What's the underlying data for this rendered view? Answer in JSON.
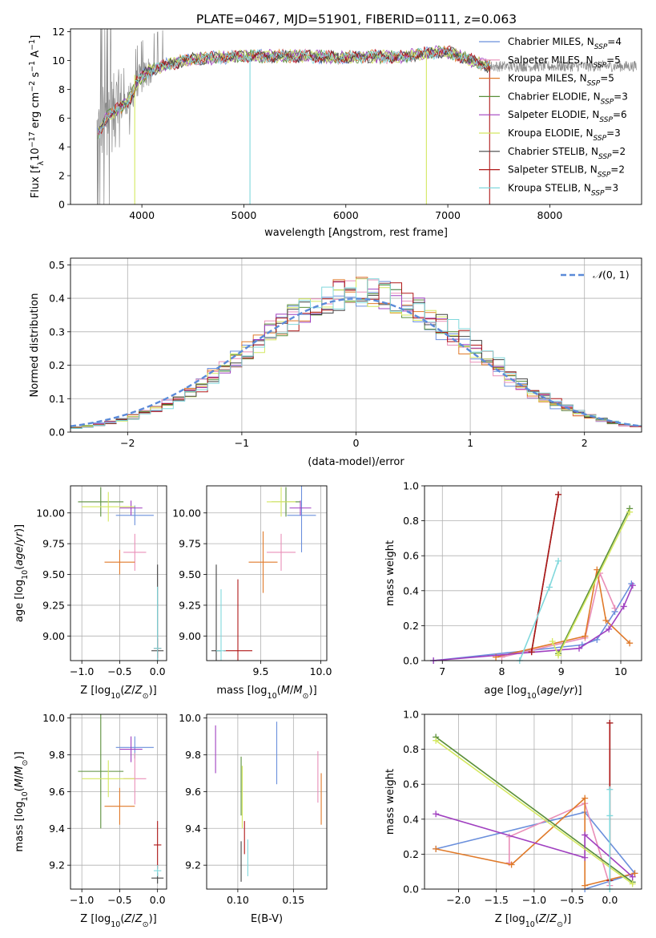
{
  "figure": {
    "title": "PLATE=0467, MJD=51901, FIBERID=0111, z=0.063"
  },
  "colors": {
    "Chabrier MILES": "#6a8fdc",
    "Salpeter MILES": "#e98fb8",
    "Kroupa MILES": "#e07a2a",
    "Chabrier ELODIE": "#5a8f3a",
    "Salpeter ELODIE": "#a040c0",
    "Kroupa ELODIE": "#d4e860",
    "Chabrier STELIB": "#444444",
    "Salpeter STELIB": "#b01818",
    "Kroupa STELIB": "#80d8dc",
    "data": "#8a8a8a",
    "normal": "#5b8ad8"
  },
  "chart_data": [
    {
      "id": "spectrum",
      "type": "line",
      "xlabel": "wavelength [Angstrom, rest frame]",
      "ylabel": "Flux [f_λ 10^-17 erg cm^-2 s^-1 A^-1]",
      "xlim": [
        3300,
        8900
      ],
      "ylim": [
        0,
        12.2
      ],
      "xticks": [
        4000,
        5000,
        6000,
        7000,
        8000
      ],
      "yticks": [
        0,
        2,
        4,
        6,
        8,
        10,
        12
      ],
      "legend_position": "lower-right",
      "legend": [
        "Chabrier MILES, N_SSP=4",
        "Salpeter MILES, N_SSP=5",
        "Kroupa MILES, N_SSP=5",
        "Chabrier ELODIE, N_SSP=3",
        "Salpeter ELODIE, N_SSP=6",
        "Kroupa ELODIE, N_SSP=3",
        "Chabrier STELIB, N_SSP=2",
        "Salpeter STELIB, N_SSP=2",
        "Kroupa STELIB, N_SSP=3"
      ],
      "continuum": {
        "x": [
          3580,
          3650,
          3800,
          3900,
          3950,
          4050,
          4200,
          4400,
          4700,
          5000,
          5300,
          5600,
          6000,
          6300,
          6500,
          6800,
          7000,
          7200,
          7400
        ],
        "y": [
          5.0,
          6.0,
          6.8,
          7.5,
          8.5,
          9.2,
          9.6,
          10.0,
          10.2,
          10.3,
          10.3,
          10.3,
          10.2,
          10.3,
          10.2,
          10.5,
          10.6,
          10.1,
          9.6
        ]
      },
      "model_end_x": 7420,
      "data_end_x": 8850
    },
    {
      "id": "residual-histogram",
      "type": "histogram",
      "xlabel": "(data-model)/error",
      "ylabel": "Normed distribution",
      "xlim": [
        -2.5,
        2.5
      ],
      "ylim": [
        0,
        0.52
      ],
      "xticks": [
        -2,
        -1,
        0,
        1,
        2
      ],
      "yticks": [
        0.0,
        0.1,
        0.2,
        0.3,
        0.4,
        0.5
      ],
      "legend": [
        "N(0,1)"
      ],
      "legend_position": "upper-right",
      "bin_width": 0.1,
      "envelope_mean": 0.05,
      "envelope_sigma": 0.95
    },
    {
      "id": "age-vs-Z",
      "type": "errorbar",
      "xlabel": "Z [log10(Z/Z_sun)]",
      "ylabel": "age [log10(age/yr)]",
      "xlim": [
        -1.15,
        0.12
      ],
      "ylim": [
        8.8,
        10.22
      ],
      "xticks": [
        -1,
        -0.5,
        0
      ],
      "yticks": [
        9.0,
        9.25,
        9.5,
        9.75,
        10.0
      ],
      "points": [
        {
          "model": "Chabrier MILES",
          "x": -0.3,
          "xerr": 0.25,
          "y": 9.98,
          "yerr": 0.08
        },
        {
          "model": "Salpeter MILES",
          "x": -0.3,
          "xerr": 0.15,
          "y": 9.68,
          "yerr": 0.15
        },
        {
          "model": "Kroupa MILES",
          "x": -0.5,
          "xerr": 0.2,
          "y": 9.6,
          "yerr": 0.1
        },
        {
          "model": "Chabrier ELODIE",
          "x": -0.75,
          "xerr": 0.3,
          "y": 10.09,
          "yerr": 0.12
        },
        {
          "model": "Salpeter ELODIE",
          "x": -0.35,
          "xerr": 0.15,
          "y": 10.04,
          "yerr": 0.06
        },
        {
          "model": "Kroupa ELODIE",
          "x": -0.65,
          "xerr": 0.35,
          "y": 10.05,
          "yerr": 0.12
        },
        {
          "model": "Chabrier STELIB",
          "x": 0.0,
          "xerr": 0.08,
          "y": 8.88,
          "yerr": 0.7
        },
        {
          "model": "Salpeter STELIB",
          "x": 0.0,
          "xerr": 0.05,
          "y": 8.9,
          "yerr": 0.08
        },
        {
          "model": "Kroupa STELIB",
          "x": 0.0,
          "xerr": 0.05,
          "y": 8.9,
          "yerr": 0.5
        }
      ]
    },
    {
      "id": "age-vs-mass",
      "type": "errorbar",
      "xlabel": "mass [log10(M/M_sun)]",
      "ylabel": "",
      "xlim": [
        9.05,
        10.05
      ],
      "ylim": [
        8.8,
        10.22
      ],
      "xticks": [
        9.5,
        10.0
      ],
      "yticks": [
        9.0,
        9.25,
        9.5,
        9.75,
        10.0
      ],
      "points": [
        {
          "model": "Chabrier MILES",
          "x": 9.84,
          "xerr": 0.12,
          "y": 9.98,
          "yerr": 0.3
        },
        {
          "model": "Salpeter MILES",
          "x": 9.67,
          "xerr": 0.12,
          "y": 9.68,
          "yerr": 0.15
        },
        {
          "model": "Kroupa MILES",
          "x": 9.52,
          "xerr": 0.12,
          "y": 9.6,
          "yerr": 0.25
        },
        {
          "model": "Chabrier ELODIE",
          "x": 9.71,
          "xerr": 0.12,
          "y": 10.09,
          "yerr": 0.12
        },
        {
          "model": "Salpeter ELODIE",
          "x": 9.83,
          "xerr": 0.09,
          "y": 10.04,
          "yerr": 0.06
        },
        {
          "model": "Kroupa ELODIE",
          "x": 9.67,
          "xerr": 0.12,
          "y": 10.09,
          "yerr": 0.12
        },
        {
          "model": "Chabrier STELIB",
          "x": 9.13,
          "xerr": 0.04,
          "y": 8.88,
          "yerr": 0.7
        },
        {
          "model": "Salpeter STELIB",
          "x": 9.31,
          "xerr": 0.12,
          "y": 8.88,
          "yerr": 0.58
        },
        {
          "model": "Kroupa STELIB",
          "x": 9.17,
          "xerr": 0.04,
          "y": 8.88,
          "yerr": 0.5
        }
      ]
    },
    {
      "id": "mass-weight-vs-age",
      "type": "line",
      "xlabel": "age [log10(age/yr)]",
      "ylabel": "mass weight",
      "xlim": [
        6.7,
        10.35
      ],
      "ylim": [
        0,
        1
      ],
      "xticks": [
        7,
        8,
        9,
        10
      ],
      "yticks": [
        0.0,
        0.2,
        0.4,
        0.6,
        0.8,
        1.0
      ],
      "series": [
        {
          "model": "Chabrier MILES",
          "x": [
            6.85,
            9.35,
            9.6,
            9.9,
            10.18
          ],
          "y": [
            0.0,
            0.09,
            0.12,
            0.28,
            0.44
          ]
        },
        {
          "model": "Salpeter MILES",
          "x": [
            8.0,
            9.4,
            9.65,
            9.9
          ],
          "y": [
            0.02,
            0.13,
            0.5,
            0.3
          ]
        },
        {
          "model": "Kroupa MILES",
          "x": [
            7.9,
            9.4,
            9.6,
            9.75,
            10.15
          ],
          "y": [
            0.02,
            0.14,
            0.52,
            0.23,
            0.1
          ]
        },
        {
          "model": "Chabrier ELODIE",
          "x": [
            8.95,
            10.15
          ],
          "y": [
            0.04,
            0.87
          ]
        },
        {
          "model": "Salpeter ELODIE",
          "x": [
            6.85,
            9.3,
            9.8,
            10.05,
            10.2
          ],
          "y": [
            0.0,
            0.07,
            0.18,
            0.31,
            0.43
          ]
        },
        {
          "model": "Kroupa ELODIE",
          "x": [
            8.85,
            8.95,
            10.15
          ],
          "y": [
            0.11,
            0.03,
            0.85
          ]
        },
        {
          "model": "Chabrier STELIB",
          "x": [
            8.5,
            8.95
          ],
          "y": [
            0.05,
            0.95
          ]
        },
        {
          "model": "Salpeter STELIB",
          "x": [
            8.5,
            8.95
          ],
          "y": [
            0.05,
            0.95
          ]
        },
        {
          "model": "Kroupa STELIB",
          "x": [
            8.3,
            8.8,
            8.95
          ],
          "y": [
            0.0,
            0.42,
            0.57
          ]
        }
      ]
    },
    {
      "id": "mass-vs-Z",
      "type": "errorbar",
      "xlabel": "Z [log10(Z/Z_sun)]",
      "ylabel": "mass [log10(M/M_sun)]",
      "xlim": [
        -1.15,
        0.12
      ],
      "ylim": [
        9.07,
        10.02
      ],
      "xticks": [
        -1,
        -0.5,
        0
      ],
      "yticks": [
        9.2,
        9.4,
        9.6,
        9.8,
        10.0
      ],
      "points": [
        {
          "model": "Chabrier MILES",
          "x": -0.3,
          "xerr": 0.25,
          "y": 9.84,
          "yerr": 0.06
        },
        {
          "model": "Salpeter MILES",
          "x": -0.3,
          "xerr": 0.15,
          "y": 9.67,
          "yerr": 0.14
        },
        {
          "model": "Kroupa MILES",
          "x": -0.5,
          "xerr": 0.2,
          "y": 9.52,
          "yerr": 0.1
        },
        {
          "model": "Chabrier ELODIE",
          "x": -0.75,
          "xerr": 0.3,
          "y": 9.71,
          "yerr": 0.31
        },
        {
          "model": "Salpeter ELODIE",
          "x": -0.35,
          "xerr": 0.15,
          "y": 9.83,
          "yerr": 0.07
        },
        {
          "model": "Kroupa ELODIE",
          "x": -0.65,
          "xerr": 0.35,
          "y": 9.67,
          "yerr": 0.1
        },
        {
          "model": "Chabrier STELIB",
          "x": 0.0,
          "xerr": 0.08,
          "y": 9.13,
          "yerr": 0.03
        },
        {
          "model": "Salpeter STELIB",
          "x": 0.0,
          "xerr": 0.05,
          "y": 9.31,
          "yerr": 0.13
        },
        {
          "model": "Kroupa STELIB",
          "x": 0.0,
          "xerr": 0.05,
          "y": 9.17,
          "yerr": 0.03
        }
      ]
    },
    {
      "id": "mass-vs-EBV",
      "type": "errorbar",
      "xlabel": "E(B-V)",
      "ylabel": "",
      "xlim": [
        0.072,
        0.18
      ],
      "ylim": [
        9.07,
        10.02
      ],
      "xticks": [
        0.1,
        0.15
      ],
      "yticks": [
        9.2,
        9.4,
        9.6,
        9.8,
        10.0
      ],
      "points": [
        {
          "model": "Chabrier MILES",
          "x": 0.135,
          "xerr": 0,
          "y": 9.81,
          "yerr": 0.17
        },
        {
          "model": "Salpeter MILES",
          "x": 0.172,
          "xerr": 0,
          "y": 9.68,
          "yerr": 0.14
        },
        {
          "model": "Kroupa MILES",
          "x": 0.175,
          "xerr": 0,
          "y": 9.56,
          "yerr": 0.14
        },
        {
          "model": "Chabrier ELODIE",
          "x": 0.103,
          "xerr": 0,
          "y": 9.63,
          "yerr": 0.16
        },
        {
          "model": "Salpeter ELODIE",
          "x": 0.08,
          "xerr": 0,
          "y": 9.83,
          "yerr": 0.13
        },
        {
          "model": "Kroupa ELODIE",
          "x": 0.104,
          "xerr": 0,
          "y": 9.57,
          "yerr": 0.17
        },
        {
          "model": "Chabrier STELIB",
          "x": 0.103,
          "xerr": 0,
          "y": 9.22,
          "yerr": 0.11
        },
        {
          "model": "Salpeter STELIB",
          "x": 0.106,
          "xerr": 0,
          "y": 9.35,
          "yerr": 0.09
        },
        {
          "model": "Kroupa STELIB",
          "x": 0.109,
          "xerr": 0,
          "y": 9.24,
          "yerr": 0.1
        }
      ]
    },
    {
      "id": "mass-weight-vs-Z",
      "type": "line",
      "xlabel": "Z [log10(Z/Z_sun)]",
      "ylabel": "mass weight",
      "xlim": [
        -2.45,
        0.42
      ],
      "ylim": [
        0,
        1
      ],
      "xticks": [
        -2.0,
        -1.5,
        -1.0,
        -0.5,
        0.0
      ],
      "yticks": [
        0.0,
        0.2,
        0.4,
        0.6,
        0.8,
        1.0
      ],
      "series": [
        {
          "model": "Chabrier MILES",
          "x": [
            -2.3,
            -0.33,
            0.33,
            -0.33
          ],
          "y": [
            0.23,
            0.44,
            0.09,
            0.0
          ]
        },
        {
          "model": "Salpeter MILES",
          "x": [
            -1.33,
            -1.33,
            -0.33,
            0.0
          ],
          "y": [
            0.15,
            0.3,
            0.49,
            0.02
          ]
        },
        {
          "model": "Kroupa MILES",
          "x": [
            -2.3,
            -1.3,
            -0.33,
            -0.33,
            0.33
          ],
          "y": [
            0.23,
            0.14,
            0.52,
            0.02,
            0.09
          ]
        },
        {
          "model": "Chabrier ELODIE",
          "x": [
            -2.3,
            0.3
          ],
          "y": [
            0.87,
            0.04
          ]
        },
        {
          "model": "Salpeter ELODIE",
          "x": [
            -2.3,
            -0.33,
            -0.33,
            0.3
          ],
          "y": [
            0.43,
            0.18,
            0.31,
            0.07
          ]
        },
        {
          "model": "Kroupa ELODIE",
          "x": [
            -2.3,
            0.3
          ],
          "y": [
            0.85,
            0.03
          ]
        },
        {
          "model": "Chabrier STELIB",
          "x": [
            0.0,
            0.0
          ],
          "y": [
            0.05,
            0.95
          ]
        },
        {
          "model": "Salpeter STELIB",
          "x": [
            0.0,
            0.0
          ],
          "y": [
            0.05,
            0.95
          ]
        },
        {
          "model": "Kroupa STELIB",
          "x": [
            0.0,
            0.0,
            0.0
          ],
          "y": [
            0.0,
            0.42,
            0.57
          ]
        }
      ]
    }
  ]
}
